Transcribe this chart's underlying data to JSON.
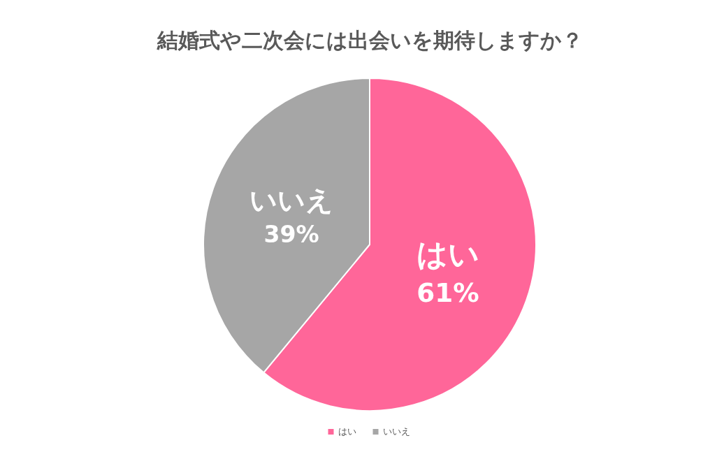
{
  "chart_data": {
    "type": "pie",
    "title": "結婚式や二次会には出会いを期待しますか？",
    "categories": [
      "はい",
      "いいえ"
    ],
    "values": [
      61,
      39
    ],
    "colors": [
      "#ff6699",
      "#a6a6a6"
    ],
    "value_labels": [
      "61%",
      "39%"
    ],
    "legend": "bottom"
  }
}
